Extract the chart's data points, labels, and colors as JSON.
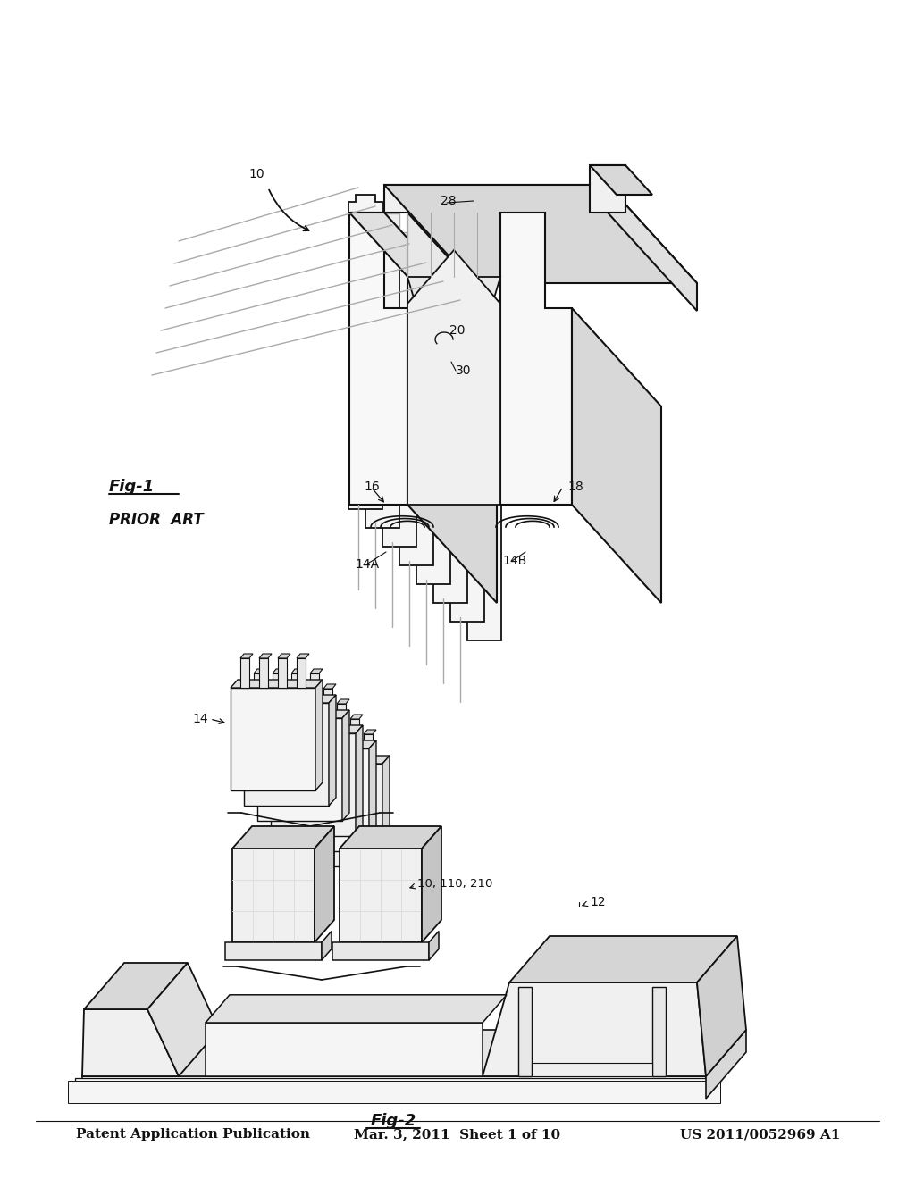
{
  "background_color": "#ffffff",
  "header_left": "Patent Application Publication",
  "header_center": "Mar. 3, 2011  Sheet 1 of 10",
  "header_right": "US 2011/0052969 A1",
  "line_color": "#111111",
  "gray_color": "#aaaaaa",
  "mid_gray": "#888888",
  "light_gray": "#dddddd",
  "fig1_label": "Fig-1",
  "fig1_sublabel": "PRIOR  ART",
  "fig2_label": "Fig-2"
}
